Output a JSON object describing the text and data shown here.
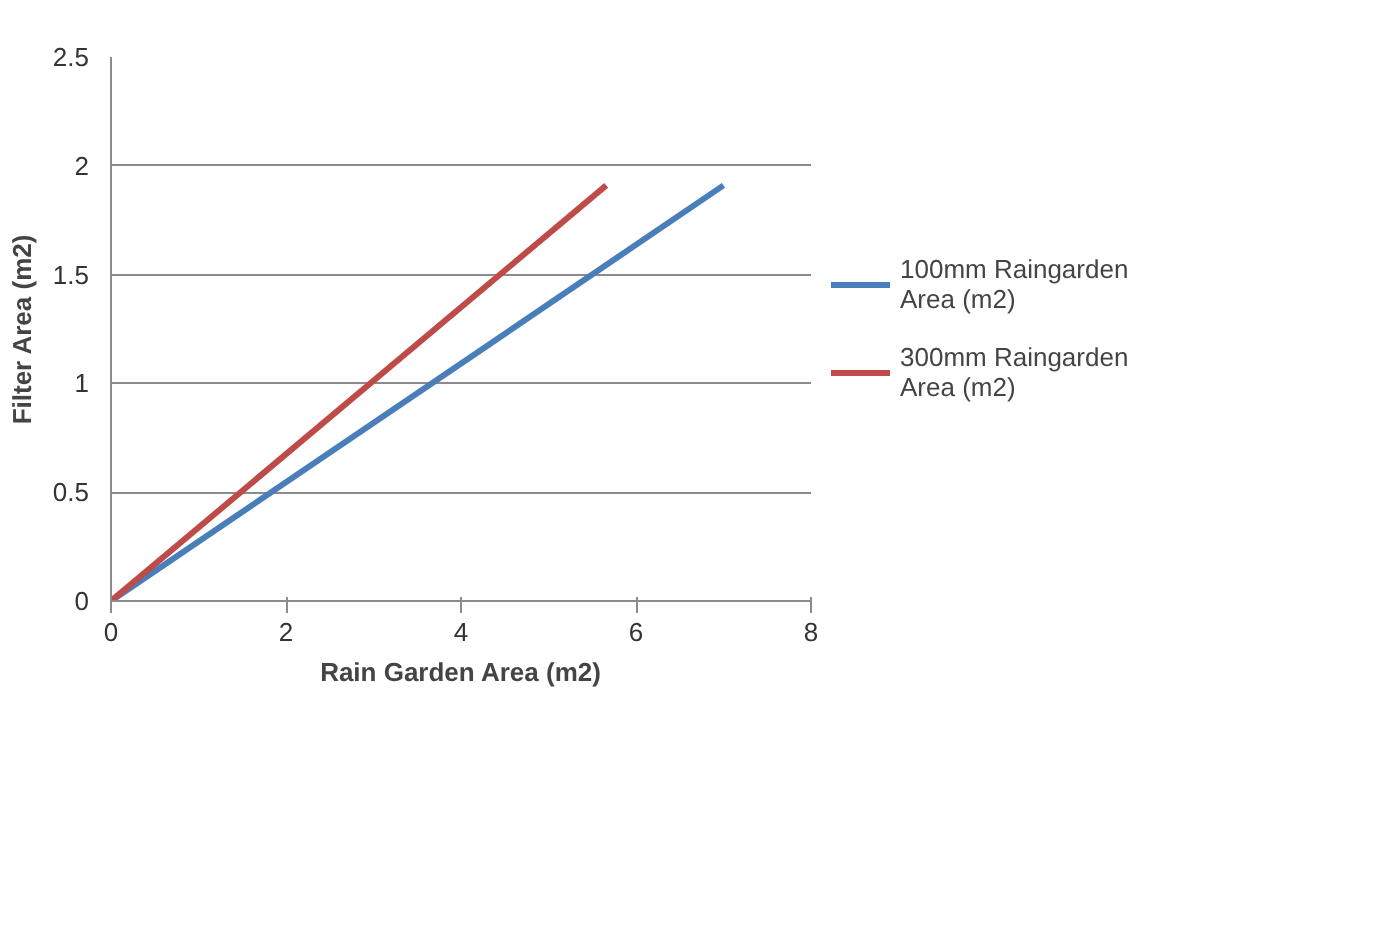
{
  "chart_data": {
    "type": "line",
    "xlabel": "Rain Garden Area (m2)",
    "ylabel": "Filter Area (m2)",
    "xlim": [
      0,
      8
    ],
    "xticks": [
      0,
      2,
      4,
      6,
      8
    ],
    "ylim": [
      0,
      2.5
    ],
    "yticks": [
      0,
      0.5,
      1,
      1.5,
      2,
      2.5
    ],
    "grid": "y",
    "legend": "right",
    "marker": "none",
    "line_style": "solid",
    "series": [
      {
        "name": "100mm Raingarden Area (m2)",
        "color": "#4a7ebb",
        "x": [
          0,
          7.0
        ],
        "values": [
          0,
          1.91
        ]
      },
      {
        "name": "300mm Raingarden Area (m2)",
        "color": "#be4b48",
        "x": [
          0,
          5.66
        ],
        "values": [
          0,
          1.91
        ]
      }
    ]
  }
}
